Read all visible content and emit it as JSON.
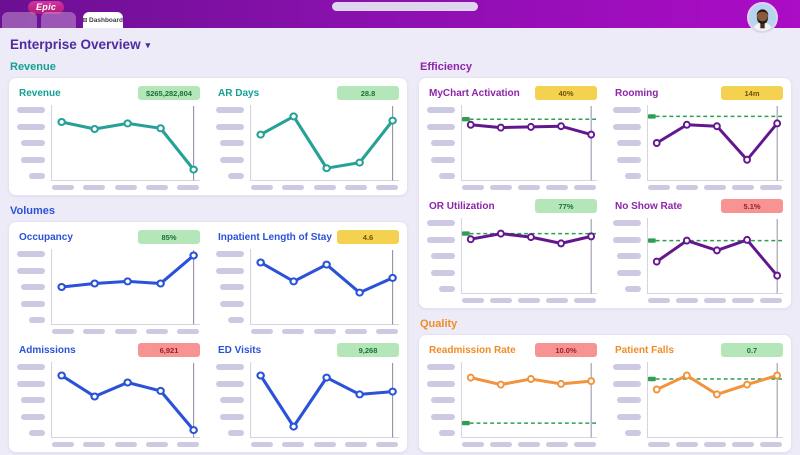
{
  "topbar": {
    "logo_text": "Epic",
    "active_tab": {
      "label": "Dashboard"
    }
  },
  "page": {
    "title": "Enterprise Overview",
    "caret": "▾"
  },
  "badge_colors": {
    "green": {
      "bg": "#b5e6ba",
      "text": "#1a713a"
    },
    "yellow": {
      "bg": "#f4d14f",
      "text": "#6e5408"
    },
    "red": {
      "bg": "#f79393",
      "text": "#9c1f2e"
    }
  },
  "target_line_color": "#2e9e51",
  "sections": [
    {
      "id": "revenue",
      "label": "Revenue",
      "column": "left",
      "accent": "#12a192",
      "line": "#26a195",
      "charts": [
        {
          "title": "Revenue",
          "badge": "$265,282,804",
          "badge_type": "green",
          "points": [
            0.8,
            0.7,
            0.78,
            0.71,
            0.12
          ]
        },
        {
          "title": "AR Days",
          "badge": "28.8",
          "badge_type": "green",
          "points": [
            0.62,
            0.88,
            0.14,
            0.22,
            0.82
          ]
        }
      ]
    },
    {
      "id": "volumes",
      "label": "Volumes",
      "column": "left",
      "accent": "#2a52d8",
      "line": "#2a52d8",
      "charts": [
        {
          "title": "Occupancy",
          "badge": "85%",
          "badge_type": "green",
          "points": [
            0.5,
            0.55,
            0.58,
            0.55,
            0.95
          ]
        },
        {
          "title": "Inpatient Length of Stay",
          "badge": "4.6",
          "badge_type": "yellow",
          "points": [
            0.85,
            0.58,
            0.82,
            0.42,
            0.63
          ]
        },
        {
          "title": "Admissions",
          "badge": "6,921",
          "badge_type": "red",
          "points": [
            0.85,
            0.55,
            0.75,
            0.63,
            0.07
          ]
        },
        {
          "title": "ED Visits",
          "badge": "9,268",
          "badge_type": "green",
          "points": [
            0.85,
            0.12,
            0.82,
            0.58,
            0.62
          ]
        }
      ]
    },
    {
      "id": "efficiency",
      "label": "Efficiency",
      "column": "right",
      "accent": "#8e24aa",
      "line": "#63178f",
      "charts": [
        {
          "title": "MyChart Activation",
          "badge": "40%",
          "badge_type": "yellow",
          "points": [
            0.76,
            0.72,
            0.73,
            0.74,
            0.62
          ],
          "target": 0.84
        },
        {
          "title": "Rooming",
          "badge": "14m",
          "badge_type": "yellow",
          "points": [
            0.5,
            0.76,
            0.74,
            0.26,
            0.78
          ],
          "target": 0.88
        },
        {
          "title": "OR Utilization",
          "badge": "77%",
          "badge_type": "green",
          "points": [
            0.74,
            0.82,
            0.77,
            0.68,
            0.78
          ],
          "target": 0.82
        },
        {
          "title": "No Show Rate",
          "badge": "5.1%",
          "badge_type": "red",
          "points": [
            0.42,
            0.72,
            0.58,
            0.73,
            0.22
          ],
          "target": 0.72
        }
      ]
    },
    {
      "id": "quality",
      "label": "Quality",
      "column": "right",
      "accent": "#f08c28",
      "line": "#f2933d",
      "charts": [
        {
          "title": "Readmission Rate",
          "badge": "10.0%",
          "badge_type": "red",
          "points": [
            0.82,
            0.72,
            0.8,
            0.73,
            0.77
          ],
          "target": 0.17
        },
        {
          "title": "Patient Falls",
          "badge": "0.7",
          "badge_type": "green",
          "points": [
            0.65,
            0.85,
            0.58,
            0.72,
            0.85
          ],
          "target": 0.8
        }
      ]
    }
  ]
}
